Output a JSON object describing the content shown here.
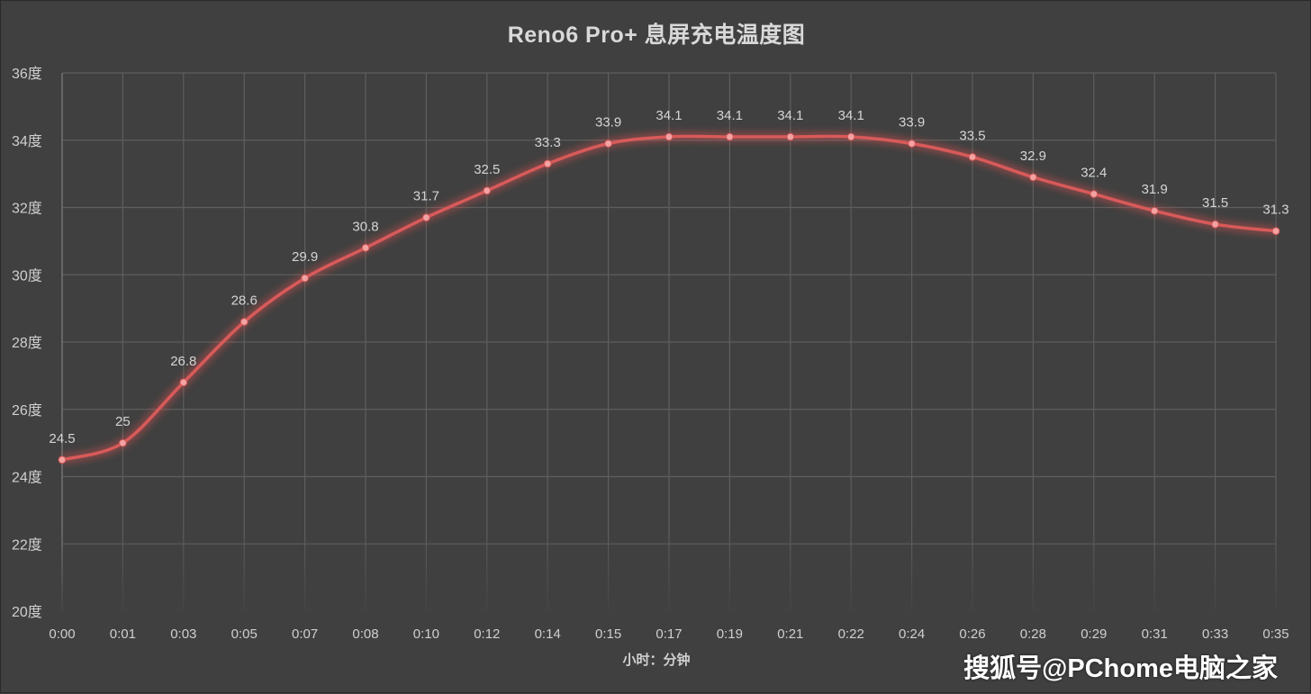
{
  "chart_data": {
    "type": "line",
    "title": "Reno6 Pro+ 息屏充电温度图",
    "xlabel": "小时：分钟",
    "ylabel": "",
    "categories": [
      "0:00",
      "0:01",
      "0:03",
      "0:05",
      "0:07",
      "0:08",
      "0:10",
      "0:12",
      "0:14",
      "0:15",
      "0:17",
      "0:19",
      "0:21",
      "0:22",
      "0:24",
      "0:26",
      "0:28",
      "0:29",
      "0:31",
      "0:33",
      "0:35"
    ],
    "series": [
      {
        "values": [
          24.5,
          25,
          26.8,
          28.6,
          29.9,
          30.8,
          31.7,
          32.5,
          33.3,
          33.9,
          34.1,
          34.1,
          34.1,
          34.1,
          33.9,
          33.5,
          32.9,
          32.4,
          31.9,
          31.5,
          31.3
        ]
      }
    ],
    "data_labels": [
      "24.5",
      "25",
      "26.8",
      "28.6",
      "29.9",
      "30.8",
      "31.7",
      "32.5",
      "33.3",
      "33.9",
      "34.1",
      "34.1",
      "34.1",
      "34.1",
      "33.9",
      "33.5",
      "32.9",
      "32.4",
      "31.9",
      "31.5",
      "31.3"
    ],
    "ylim": [
      20,
      36
    ],
    "y_ticks": [
      20,
      22,
      24,
      26,
      28,
      30,
      32,
      34,
      36
    ],
    "y_tick_labels": [
      "20度",
      "22度",
      "24度",
      "26度",
      "28度",
      "30度",
      "32度",
      "34度",
      "36度"
    ],
    "grid": true,
    "legend": "none",
    "colors": {
      "background": "#404040",
      "line": "#d85a5a",
      "marker": "#f2a3a3",
      "glow": "#e05050",
      "grid": "#5e5e5e",
      "text": "#d9d9d9"
    }
  },
  "watermark": "搜狐号@PChome电脑之家"
}
